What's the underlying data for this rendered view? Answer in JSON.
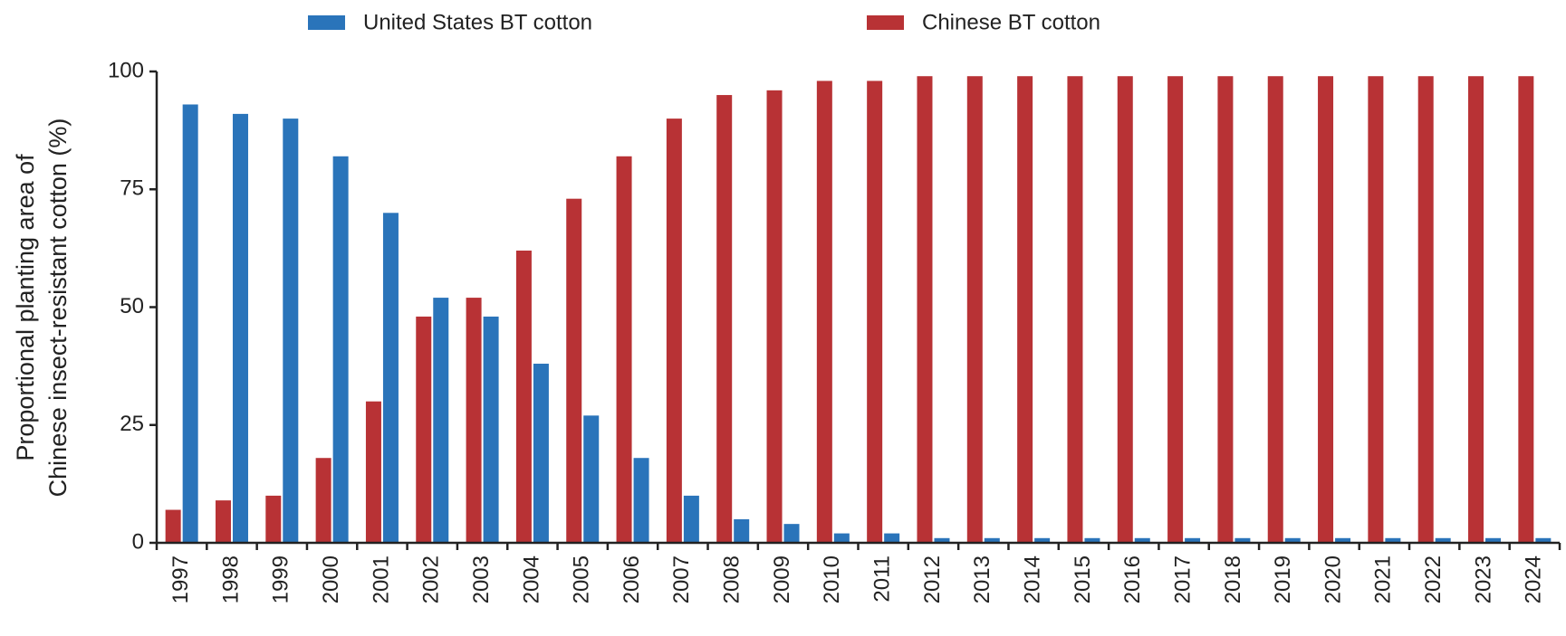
{
  "chart_data": {
    "type": "bar",
    "y_label": [
      "Proportional planting area of",
      "Chinese insect-resistant cotton (%)"
    ],
    "categories": [
      "1997",
      "1998",
      "1999",
      "2000",
      "2001",
      "2002",
      "2003",
      "2004",
      "2005",
      "2006",
      "2007",
      "2008",
      "2009",
      "2010",
      "2011",
      "2012",
      "2013",
      "2014",
      "2015",
      "2016",
      "2017",
      "2018",
      "2019",
      "2020",
      "2021",
      "2022",
      "2023",
      "2024"
    ],
    "series": [
      {
        "name": "United States BT cotton",
        "color": "#2a74ba",
        "values": [
          93,
          91,
          90,
          82,
          70,
          52,
          48,
          38,
          27,
          18,
          10,
          5,
          4,
          2,
          2,
          1,
          1,
          1,
          1,
          1,
          1,
          1,
          1,
          1,
          1,
          1,
          1,
          1
        ]
      },
      {
        "name": "Chinese BT cotton",
        "color": "#b83235",
        "values": [
          7,
          9,
          10,
          18,
          30,
          48,
          52,
          62,
          73,
          82,
          90,
          95,
          96,
          98,
          98,
          99,
          99,
          99,
          99,
          99,
          99,
          99,
          99,
          99,
          99,
          99,
          99,
          99
        ]
      }
    ],
    "ylim": [
      0,
      100
    ],
    "yticks": [
      0,
      25,
      50,
      75,
      100
    ],
    "grid": false,
    "legend": "top"
  }
}
